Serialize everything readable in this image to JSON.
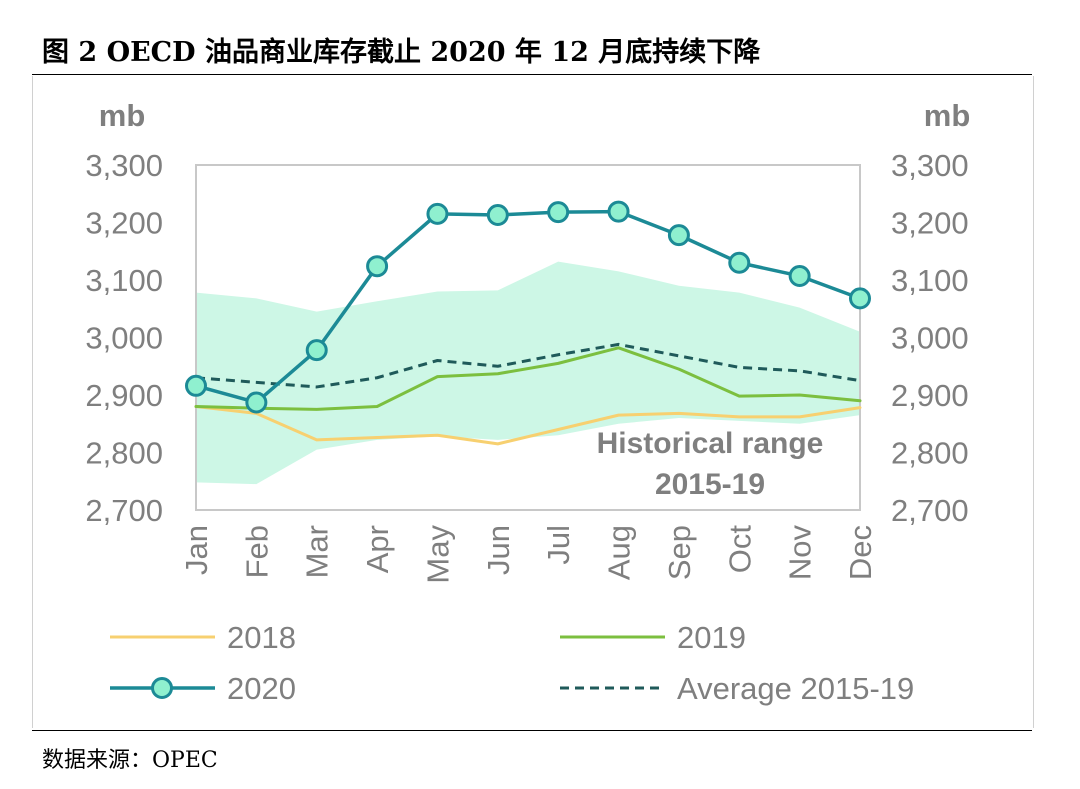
{
  "caption": "图 2 OECD 油品商业库存截止 2020 年 12 月底持续下降",
  "source": "数据来源：OPEC",
  "colors": {
    "s2018": "#f7d070",
    "s2019": "#7cbf3f",
    "s2020": "#1c8a96",
    "marker_fill": "#8ff0cf",
    "average": "#1f5a5a",
    "range": "#cdf7e6",
    "axis_text": "#7f7f7f"
  },
  "chart_data": {
    "type": "line",
    "unit_left": "mb",
    "unit_right": "mb",
    "categories": [
      "Jan",
      "Feb",
      "Mar",
      "Apr",
      "May",
      "Jun",
      "Jul",
      "Aug",
      "Sep",
      "Oct",
      "Nov",
      "Dec"
    ],
    "ylim": [
      2700,
      3300
    ],
    "yticks": [
      "2,700",
      "2,800",
      "2,900",
      "3,000",
      "3,100",
      "3,200",
      "3,300"
    ],
    "series": [
      {
        "name": "2018",
        "style": "solid",
        "values": [
          2880,
          2868,
          2822,
          2826,
          2830,
          2815,
          2840,
          2865,
          2868,
          2862,
          2862,
          2878
        ]
      },
      {
        "name": "2019",
        "style": "solid",
        "values": [
          2880,
          2877,
          2875,
          2880,
          2932,
          2937,
          2955,
          2982,
          2945,
          2898,
          2900,
          2890
        ]
      },
      {
        "name": "2020",
        "style": "solid-marker",
        "values": [
          2916,
          2887,
          2978,
          3124,
          3215,
          3213,
          3218,
          3219,
          3178,
          3130,
          3107,
          3068
        ]
      },
      {
        "name": "Average 2015-19",
        "style": "dashed",
        "values": [
          2930,
          2922,
          2914,
          2930,
          2960,
          2950,
          2970,
          2988,
          2968,
          2948,
          2942,
          2925
        ]
      }
    ],
    "band": {
      "label_line1": "Historical range",
      "label_line2": "2015-19",
      "upper": [
        3078,
        3068,
        3045,
        3063,
        3080,
        3082,
        3132,
        3115,
        3090,
        3078,
        3052,
        3010
      ],
      "lower": [
        2748,
        2745,
        2805,
        2822,
        2828,
        2822,
        2830,
        2850,
        2860,
        2855,
        2850,
        2865
      ]
    },
    "legend": [
      {
        "label": "2018",
        "style": "solid",
        "color_key": "s2018"
      },
      {
        "label": "2019",
        "style": "solid",
        "color_key": "s2019"
      },
      {
        "label": "2020",
        "style": "solid-marker",
        "color_key": "s2020"
      },
      {
        "label": "Average 2015-19",
        "style": "dashed",
        "color_key": "average"
      }
    ],
    "legend_position": "bottom",
    "grid": false
  }
}
